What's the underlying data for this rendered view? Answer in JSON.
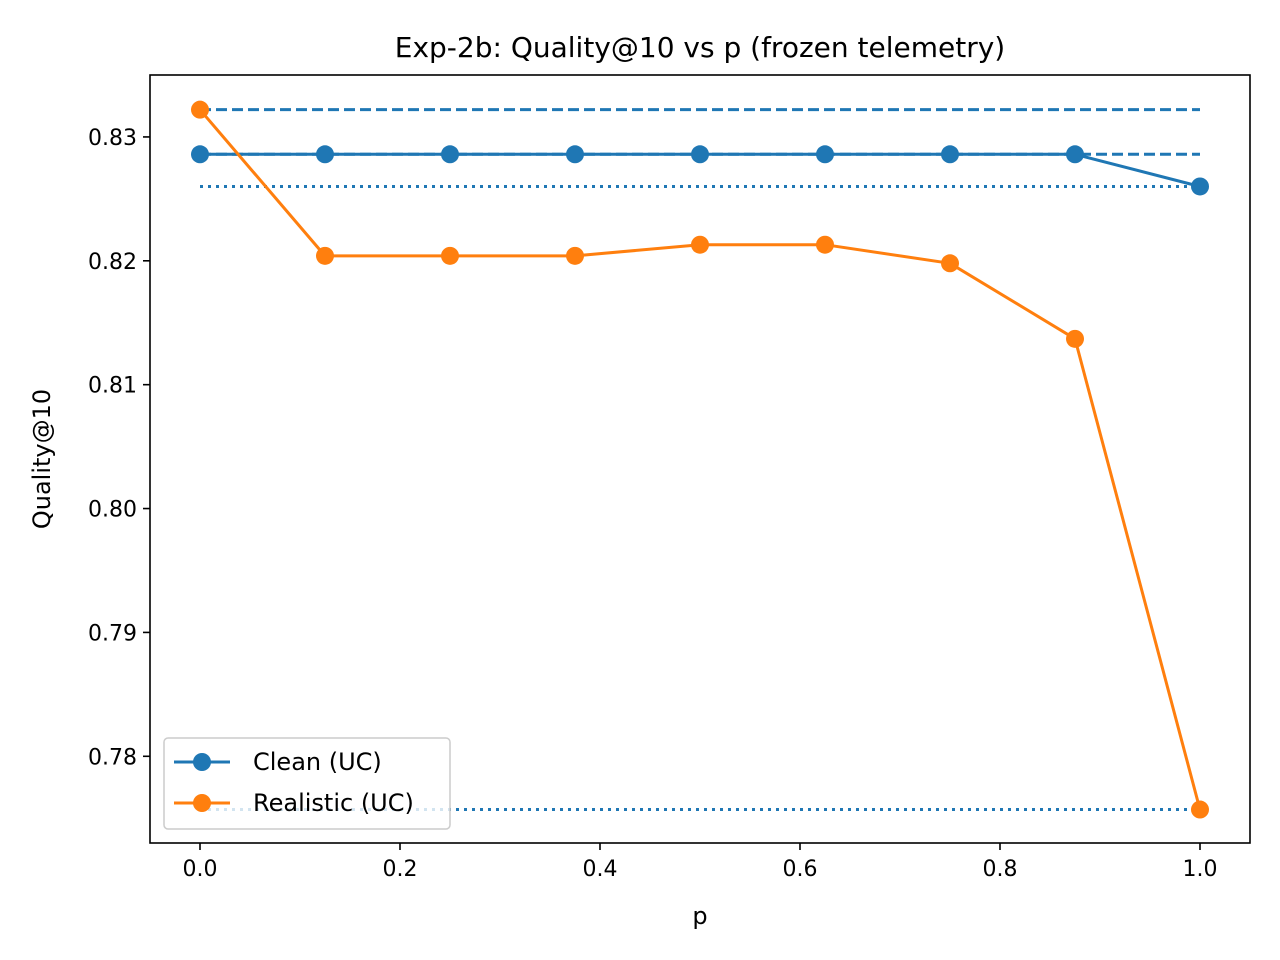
{
  "chart_data": {
    "type": "line",
    "title": "Exp-2b: Quality@10 vs p (frozen telemetry)",
    "xlabel": "p",
    "ylabel": "Quality@10",
    "xlim": [
      -0.05,
      1.05
    ],
    "ylim": [
      0.773,
      0.835
    ],
    "xticks": [
      0.0,
      0.2,
      0.4,
      0.6,
      0.8,
      1.0
    ],
    "xtick_labels": [
      "0.0",
      "0.2",
      "0.4",
      "0.6",
      "0.8",
      "1.0"
    ],
    "yticks": [
      0.78,
      0.79,
      0.8,
      0.81,
      0.82,
      0.83
    ],
    "ytick_labels": [
      "0.78",
      "0.79",
      "0.80",
      "0.81",
      "0.82",
      "0.83"
    ],
    "x": [
      0.0,
      0.125,
      0.25,
      0.375,
      0.5,
      0.625,
      0.75,
      0.875,
      1.0
    ],
    "series": [
      {
        "name": "Clean (UC)",
        "color": "#1f77b4",
        "values": [
          0.8286,
          0.8286,
          0.8286,
          0.8286,
          0.8286,
          0.8286,
          0.8286,
          0.8286,
          0.826
        ]
      },
      {
        "name": "Realistic (UC)",
        "color": "#ff7f0e",
        "values": [
          0.8322,
          0.8204,
          0.8204,
          0.8204,
          0.8213,
          0.8213,
          0.8198,
          0.8137,
          0.7757
        ]
      }
    ],
    "reference_lines": [
      {
        "value": 0.8322,
        "style": "dashed",
        "color": "#1f77b4"
      },
      {
        "value": 0.8286,
        "style": "dashed",
        "color": "#1f77b4"
      },
      {
        "value": 0.826,
        "style": "dotted",
        "color": "#1f77b4"
      },
      {
        "value": 0.7757,
        "style": "dotted",
        "color": "#1f77b4"
      }
    ],
    "reference_x_range": [
      0.0,
      1.0
    ],
    "legend_position": "lower-left",
    "grid": false
  }
}
